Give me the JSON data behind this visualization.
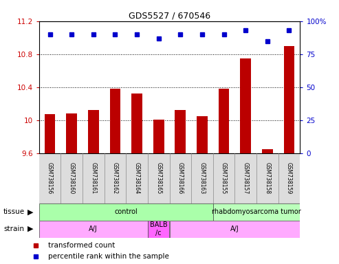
{
  "title": "GDS5527 / 670546",
  "samples": [
    "GSM738156",
    "GSM738160",
    "GSM738161",
    "GSM738162",
    "GSM738164",
    "GSM738165",
    "GSM738166",
    "GSM738163",
    "GSM738155",
    "GSM738157",
    "GSM738158",
    "GSM738159"
  ],
  "bar_values": [
    10.07,
    10.08,
    10.12,
    10.38,
    10.32,
    10.01,
    10.12,
    10.05,
    10.38,
    10.75,
    9.65,
    10.9
  ],
  "dot_values": [
    90,
    90,
    90,
    90,
    90,
    87,
    90,
    90,
    90,
    93,
    85,
    93
  ],
  "ylim_left": [
    9.6,
    11.2
  ],
  "ylim_right": [
    0,
    100
  ],
  "yticks_left": [
    9.6,
    10.0,
    10.4,
    10.8,
    11.2
  ],
  "yticks_right": [
    0,
    25,
    50,
    75,
    100
  ],
  "ytick_labels_left": [
    "9.6",
    "10",
    "10.4",
    "10.8",
    "11.2"
  ],
  "ytick_labels_right": [
    "0",
    "25",
    "50",
    "75",
    "100%"
  ],
  "bar_color": "#bb0000",
  "dot_color": "#0000cc",
  "bar_bottom": 9.6,
  "tissue_groups": [
    {
      "label": "control",
      "start": 0,
      "end": 8,
      "color": "#aaffaa"
    },
    {
      "label": "rhabdomyosarcoma tumor",
      "start": 8,
      "end": 12,
      "color": "#bbffbb"
    }
  ],
  "strain_groups": [
    {
      "label": "A/J",
      "start": 0,
      "end": 5,
      "color": "#ffaaff"
    },
    {
      "label": "BALB\n/c",
      "start": 5,
      "end": 6,
      "color": "#ff66ff"
    },
    {
      "label": "A/J",
      "start": 6,
      "end": 12,
      "color": "#ffaaff"
    }
  ],
  "legend_bar_label": "transformed count",
  "legend_dot_label": "percentile rank within the sample",
  "background_color": "#ffffff",
  "left_color": "#cc0000",
  "right_color": "#0000cc"
}
